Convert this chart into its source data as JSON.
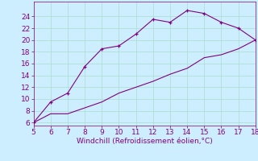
{
  "x_upper": [
    5,
    6,
    7,
    8,
    9,
    10,
    11,
    12,
    13,
    14,
    15,
    16,
    17,
    18
  ],
  "y_upper": [
    6,
    9.5,
    11,
    15.5,
    18.5,
    19,
    21,
    23.5,
    23,
    25,
    24.5,
    23,
    22,
    20
  ],
  "x_lower": [
    5,
    6,
    7,
    8,
    9,
    10,
    11,
    12,
    13,
    14,
    15,
    16,
    17,
    18
  ],
  "y_lower": [
    6,
    7.5,
    7.5,
    8.5,
    9.5,
    11,
    12,
    13,
    14.2,
    15.2,
    17,
    17.5,
    18.5,
    20
  ],
  "line_color": "#800080",
  "xlabel": "Windchill (Refroidissement éolien,°C)",
  "xlim": [
    5,
    18
  ],
  "ylim": [
    5.5,
    26.5
  ],
  "xticks": [
    5,
    6,
    7,
    8,
    9,
    10,
    11,
    12,
    13,
    14,
    15,
    16,
    17,
    18
  ],
  "yticks": [
    6,
    8,
    10,
    12,
    14,
    16,
    18,
    20,
    22,
    24
  ],
  "bg_color": "#cceeff",
  "grid_color": "#aaddcc",
  "tick_color": "#800080",
  "label_color": "#800080",
  "axis_fontsize": 6.5
}
